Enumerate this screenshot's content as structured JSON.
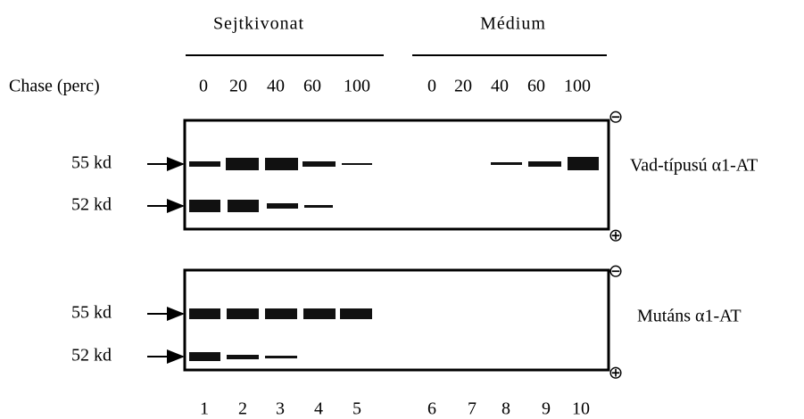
{
  "header": {
    "groups": [
      "Sejtkivonat",
      "Médium"
    ],
    "chase_label": "Chase (perc)",
    "chase_times": [
      "0",
      "20",
      "40",
      "60",
      "100",
      "0",
      "20",
      "40",
      "60",
      "100"
    ]
  },
  "gels": [
    {
      "label": "Vad-típusú α1-AT",
      "markers": [
        "55 kd",
        "52 kd"
      ],
      "minus": "⊖",
      "plus": "⊕"
    },
    {
      "label": "Mutáns α1-AT",
      "markers": [
        "55 kd",
        "52 kd"
      ],
      "minus": "⊖",
      "plus": "⊕"
    }
  ],
  "lanes": [
    "1",
    "2",
    "3",
    "4",
    "5",
    "6",
    "7",
    "8",
    "9",
    "10"
  ]
}
